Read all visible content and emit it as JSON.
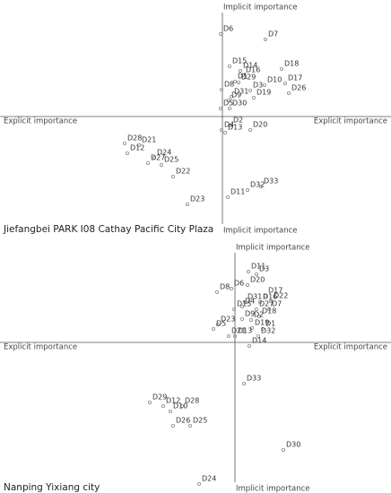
{
  "chart_data": [
    {
      "type": "scatter",
      "caption": "Jiefangbei PARK I08 Cathay Pacific City Plaza",
      "y_label_top": "Implicit importance",
      "y_label_bottom": "Implicit importance",
      "x_label_left": "Explicit importance",
      "x_label_right": "Explicit importance",
      "xlim": [
        -248,
        188
      ],
      "ylim": [
        -132,
        130
      ],
      "color": "#888888",
      "labels": [
        "D6",
        "D7",
        "D15",
        "D14",
        "D18",
        "D16",
        "D17",
        "D1",
        "D29",
        "D10",
        "D8",
        "D3",
        "D19",
        "D26",
        "D31",
        "D9",
        "D5",
        "D30",
        "D2",
        "D20",
        "D4",
        "D13",
        "D28",
        "D21",
        "D12",
        "D24",
        "D25",
        "D27",
        "D22",
        "D32",
        "D33",
        "D23",
        "D11"
      ],
      "x": [
        -2,
        48,
        8,
        20,
        66,
        23,
        70,
        14,
        18,
        47,
        -1,
        31,
        35,
        74,
        10,
        7,
        -2,
        8,
        9,
        31,
        -1,
        3,
        -109,
        -93,
        -106,
        -76,
        -68,
        -83,
        -55,
        28,
        43,
        -39,
        6
      ],
      "y": [
        92,
        86,
        56,
        51,
        53,
        46,
        37,
        39,
        38,
        35,
        30,
        29,
        21,
        26,
        22,
        18,
        9,
        9,
        -10,
        -15,
        -15,
        -18,
        -30,
        -32,
        -41,
        -46,
        -54,
        -52,
        -67,
        -82,
        -78,
        -98,
        -90
      ]
    },
    {
      "type": "scatter",
      "caption": "Nanping Yixiang city",
      "y_label_top": "Implicit importance",
      "y_label_bottom": "Implicit importance",
      "x_label_left": "Explicit importance",
      "x_label_right": "Explicit importance",
      "xlim": [
        -262,
        174
      ],
      "ylim": [
        -168,
        114
      ],
      "color": "#888888",
      "labels": [
        "D11",
        "D3",
        "D20",
        "D8",
        "D6",
        "D17",
        "D31",
        "D16",
        "D22",
        "D15",
        "D4",
        "D27",
        "D7",
        "D18",
        "D9",
        "D2",
        "D23",
        "D5",
        "D19",
        "D1",
        "D21",
        "D13",
        "D32",
        "D14",
        "D33",
        "D29",
        "D12",
        "D28",
        "D10",
        "D26",
        "D25",
        "D30",
        "D24"
      ],
      "x": [
        15,
        24,
        14,
        -20,
        -4,
        34,
        11,
        28,
        40,
        -1,
        8,
        24,
        38,
        27,
        8,
        18,
        -19,
        -24,
        19,
        31,
        -7,
        0,
        26,
        16,
        10,
        -95,
        -80,
        -59,
        -72,
        -69,
        -50,
        54,
        -40
      ],
      "y": [
        79,
        76,
        64,
        56,
        60,
        52,
        45,
        45,
        46,
        37,
        40,
        37,
        37,
        29,
        26,
        25,
        20,
        15,
        16,
        15,
        7,
        7,
        7,
        -4,
        -46,
        -67,
        -71,
        -71,
        -77,
        -93,
        -93,
        -120,
        -158
      ]
    }
  ]
}
